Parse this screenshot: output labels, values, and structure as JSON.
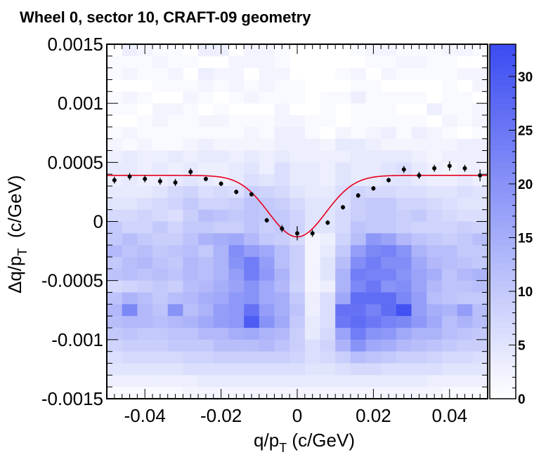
{
  "chart_data": {
    "type": "heatmap",
    "title": "Wheel 0, sector 10, CRAFT-09 geometry",
    "xlabel": {
      "main": "q/p",
      "sub": "T",
      "suffix": " (c/GeV)"
    },
    "ylabel": {
      "prefix": "Δq/p",
      "sub": "T",
      "suffix": "  (c/GeV)"
    },
    "xlim": [
      -0.05,
      0.05
    ],
    "ylim": [
      -0.0015,
      0.0015
    ],
    "zlim": [
      0,
      33
    ],
    "x_ticks": [
      {
        "v": -0.04,
        "label": "-0.04"
      },
      {
        "v": -0.02,
        "label": "-0.02"
      },
      {
        "v": 0,
        "label": "0"
      },
      {
        "v": 0.02,
        "label": "0.02"
      },
      {
        "v": 0.04,
        "label": "0.04"
      }
    ],
    "y_ticks": [
      {
        "v": 0.0015,
        "label": "0.0015"
      },
      {
        "v": 0.001,
        "label": "0.001"
      },
      {
        "v": 0.0005,
        "label": "0.0005"
      },
      {
        "v": 0,
        "label": "0"
      },
      {
        "v": -0.0005,
        "label": "-0.0005"
      },
      {
        "v": -0.001,
        "label": "-0.001"
      },
      {
        "v": -0.0015,
        "label": "-0.0015"
      }
    ],
    "z_ticks": [
      {
        "v": 0,
        "label": "0"
      },
      {
        "v": 5,
        "label": "5"
      },
      {
        "v": 10,
        "label": "10"
      },
      {
        "v": 15,
        "label": "15"
      },
      {
        "v": 20,
        "label": "20"
      },
      {
        "v": 25,
        "label": "25"
      },
      {
        "v": 30,
        "label": "30"
      }
    ],
    "colors": {
      "low": "#ffffff",
      "high": "#3b4cf2",
      "fit": "#e8001c",
      "points": "#000000",
      "frame": "#000000"
    },
    "grid_x": [
      -0.05,
      0.05,
      25
    ],
    "grid_y": [
      -0.0015,
      0.0015,
      30
    ],
    "cells": [
      [
        0,
        3,
        2,
        1,
        1,
        0,
        3,
        3,
        0,
        2,
        2,
        1,
        0,
        0,
        0,
        0,
        1,
        2,
        2,
        1,
        1,
        1,
        2,
        2,
        1
      ],
      [
        1,
        1,
        1,
        2,
        1,
        1,
        0,
        0,
        2,
        2,
        2,
        1,
        0,
        0,
        0,
        0,
        0,
        1,
        1,
        2,
        2,
        1,
        1,
        0,
        0
      ],
      [
        1,
        2,
        1,
        1,
        2,
        0,
        3,
        2,
        2,
        0,
        2,
        2,
        0,
        0,
        0,
        1,
        2,
        0,
        2,
        1,
        1,
        1,
        1,
        2,
        2
      ],
      [
        0,
        0,
        0,
        1,
        1,
        1,
        2,
        1,
        2,
        1,
        2,
        1,
        1,
        0,
        0,
        0,
        1,
        1,
        0,
        0,
        0,
        0,
        1,
        0,
        2
      ],
      [
        1,
        2,
        1,
        0,
        0,
        2,
        1,
        0,
        1,
        2,
        1,
        1,
        1,
        0,
        1,
        1,
        3,
        1,
        1,
        1,
        1,
        0,
        1,
        1,
        0
      ],
      [
        1,
        1,
        0,
        2,
        2,
        1,
        0,
        1,
        0,
        0,
        0,
        2,
        0,
        0,
        1,
        0,
        1,
        1,
        1,
        0,
        0,
        3,
        1,
        1,
        2
      ],
      [
        0,
        0,
        1,
        2,
        1,
        1,
        2,
        2,
        1,
        1,
        1,
        2,
        2,
        1,
        1,
        0,
        1,
        1,
        1,
        1,
        1,
        0,
        2,
        1,
        2
      ],
      [
        1,
        2,
        1,
        1,
        1,
        1,
        1,
        1,
        1,
        2,
        1,
        3,
        3,
        1,
        0,
        2,
        1,
        2,
        3,
        1,
        3,
        2,
        1,
        0,
        1
      ],
      [
        2,
        1,
        2,
        1,
        1,
        2,
        3,
        2,
        2,
        2,
        2,
        3,
        3,
        3,
        2,
        4,
        4,
        3,
        2,
        2,
        2,
        2,
        2,
        3,
        3
      ],
      [
        3,
        4,
        3,
        3,
        4,
        3,
        4,
        4,
        3,
        4,
        3,
        4,
        3,
        3,
        3,
        3,
        4,
        4,
        4,
        4,
        3,
        2,
        3,
        3,
        3
      ],
      [
        4,
        4,
        3,
        4,
        3,
        4,
        3,
        3,
        4,
        5,
        3,
        6,
        4,
        4,
        3,
        5,
        4,
        4,
        5,
        6,
        4,
        3,
        2,
        3,
        3
      ],
      [
        3,
        4,
        3,
        3,
        4,
        5,
        4,
        3,
        4,
        6,
        5,
        6,
        4,
        4,
        3,
        5,
        4,
        4,
        5,
        5,
        4,
        3,
        3,
        4,
        3
      ],
      [
        4,
        4,
        4,
        5,
        7,
        8,
        6,
        7,
        6,
        9,
        8,
        7,
        5,
        4,
        4,
        6,
        8,
        7,
        7,
        6,
        6,
        5,
        5,
        6,
        5
      ],
      [
        5,
        5,
        6,
        7,
        8,
        10,
        8,
        8,
        9,
        11,
        10,
        9,
        7,
        5,
        5,
        6,
        9,
        10,
        10,
        8,
        8,
        7,
        6,
        5,
        5
      ],
      [
        7,
        7,
        8,
        7,
        6,
        9,
        12,
        11,
        10,
        11,
        10,
        10,
        8,
        5,
        5,
        7,
        9,
        10,
        10,
        9,
        10,
        8,
        7,
        6,
        6
      ],
      [
        10,
        8,
        8,
        10,
        8,
        10,
        10,
        9,
        9,
        11,
        9,
        10,
        8,
        5,
        5,
        7,
        11,
        10,
        10,
        9,
        8,
        8,
        8,
        9,
        8
      ],
      [
        10,
        12,
        10,
        9,
        9,
        11,
        14,
        15,
        16,
        13,
        10,
        9,
        7,
        2,
        3,
        8,
        12,
        19,
        17,
        13,
        11,
        10,
        9,
        10,
        12
      ],
      [
        13,
        11,
        12,
        10,
        11,
        12,
        10,
        14,
        21,
        18,
        16,
        12,
        9,
        2,
        4,
        10,
        18,
        22,
        23,
        20,
        14,
        12,
        12,
        10,
        10
      ],
      [
        10,
        12,
        13,
        11,
        10,
        13,
        12,
        14,
        20,
        24,
        18,
        12,
        9,
        2,
        5,
        12,
        21,
        24,
        21,
        21,
        16,
        13,
        12,
        11,
        10
      ],
      [
        11,
        12,
        11,
        12,
        11,
        13,
        12,
        14,
        18,
        24,
        19,
        14,
        9,
        2,
        5,
        14,
        24,
        23,
        23,
        20,
        17,
        15,
        11,
        13,
        14
      ],
      [
        7,
        8,
        9,
        10,
        9,
        12,
        13,
        15,
        17,
        20,
        16,
        13,
        8,
        2,
        3,
        14,
        22,
        25,
        20,
        21,
        17,
        13,
        11,
        11,
        12
      ],
      [
        11,
        14,
        12,
        10,
        12,
        13,
        15,
        16,
        19,
        20,
        16,
        15,
        10,
        3,
        6,
        16,
        27,
        27,
        27,
        22,
        18,
        12,
        11,
        10,
        10
      ],
      [
        13,
        22,
        13,
        11,
        20,
        12,
        14,
        18,
        19,
        26,
        18,
        15,
        11,
        3,
        6,
        26,
        26,
        23,
        27,
        32,
        18,
        15,
        14,
        18,
        12
      ],
      [
        12,
        13,
        13,
        12,
        13,
        14,
        16,
        18,
        19,
        30,
        20,
        16,
        10,
        4,
        6,
        25,
        27,
        25,
        23,
        22,
        19,
        16,
        12,
        14,
        12
      ],
      [
        10,
        11,
        10,
        10,
        11,
        11,
        13,
        13,
        15,
        16,
        14,
        13,
        9,
        4,
        7,
        17,
        24,
        20,
        19,
        16,
        14,
        14,
        12,
        11,
        10
      ],
      [
        8,
        9,
        9,
        9,
        10,
        10,
        10,
        12,
        12,
        12,
        13,
        11,
        9,
        6,
        8,
        14,
        20,
        16,
        15,
        13,
        12,
        11,
        10,
        9,
        9
      ],
      [
        6,
        7,
        7,
        7,
        7,
        8,
        8,
        9,
        9,
        9,
        9,
        9,
        8,
        6,
        7,
        9,
        12,
        11,
        10,
        9,
        9,
        8,
        7,
        7,
        6
      ],
      [
        5,
        5,
        5,
        5,
        5,
        6,
        6,
        6,
        6,
        6,
        6,
        6,
        6,
        5,
        5,
        6,
        7,
        7,
        6,
        6,
        6,
        6,
        5,
        5,
        5
      ],
      [
        3,
        3,
        3,
        3,
        3,
        3,
        4,
        4,
        4,
        4,
        4,
        4,
        4,
        4,
        4,
        4,
        4,
        4,
        4,
        4,
        4,
        3,
        3,
        3,
        3
      ],
      [
        1,
        1,
        1,
        1,
        1,
        2,
        2,
        2,
        2,
        2,
        2,
        2,
        2,
        2,
        2,
        2,
        2,
        2,
        2,
        2,
        2,
        2,
        1,
        1,
        1
      ]
    ],
    "points": [
      {
        "x": -0.048,
        "y": 0.00035,
        "err": 3e-05
      },
      {
        "x": -0.044,
        "y": 0.00038,
        "err": 3e-05
      },
      {
        "x": -0.04,
        "y": 0.00036,
        "err": 3e-05
      },
      {
        "x": -0.036,
        "y": 0.00034,
        "err": 3e-05
      },
      {
        "x": -0.032,
        "y": 0.00033,
        "err": 3e-05
      },
      {
        "x": -0.028,
        "y": 0.00042,
        "err": 3e-05
      },
      {
        "x": -0.024,
        "y": 0.00036,
        "err": 2e-05
      },
      {
        "x": -0.02,
        "y": 0.00032,
        "err": 2e-05
      },
      {
        "x": -0.016,
        "y": 0.00025,
        "err": 2e-05
      },
      {
        "x": -0.012,
        "y": 0.00023,
        "err": 2e-05
      },
      {
        "x": -0.008,
        "y": 1e-05,
        "err": 2e-05
      },
      {
        "x": -0.004,
        "y": -6e-05,
        "err": 3e-05
      },
      {
        "x": 0.0,
        "y": -0.0001,
        "err": 6e-05
      },
      {
        "x": 0.004,
        "y": -0.0001,
        "err": 3e-05
      },
      {
        "x": 0.008,
        "y": -1e-05,
        "err": 2e-05
      },
      {
        "x": 0.012,
        "y": 0.00012,
        "err": 2e-05
      },
      {
        "x": 0.016,
        "y": 0.00022,
        "err": 2e-05
      },
      {
        "x": 0.02,
        "y": 0.00028,
        "err": 2e-05
      },
      {
        "x": 0.024,
        "y": 0.00035,
        "err": 2e-05
      },
      {
        "x": 0.028,
        "y": 0.00044,
        "err": 3e-05
      },
      {
        "x": 0.032,
        "y": 0.00039,
        "err": 3e-05
      },
      {
        "x": 0.036,
        "y": 0.00045,
        "err": 3e-05
      },
      {
        "x": 0.04,
        "y": 0.00047,
        "err": 4e-05
      },
      {
        "x": 0.044,
        "y": 0.00045,
        "err": 3e-05
      },
      {
        "x": 0.048,
        "y": 0.00039,
        "err": 5e-05
      }
    ],
    "fit": {
      "baseline": 0.00039,
      "depth": 0.00052,
      "sigma": 0.0075
    }
  }
}
